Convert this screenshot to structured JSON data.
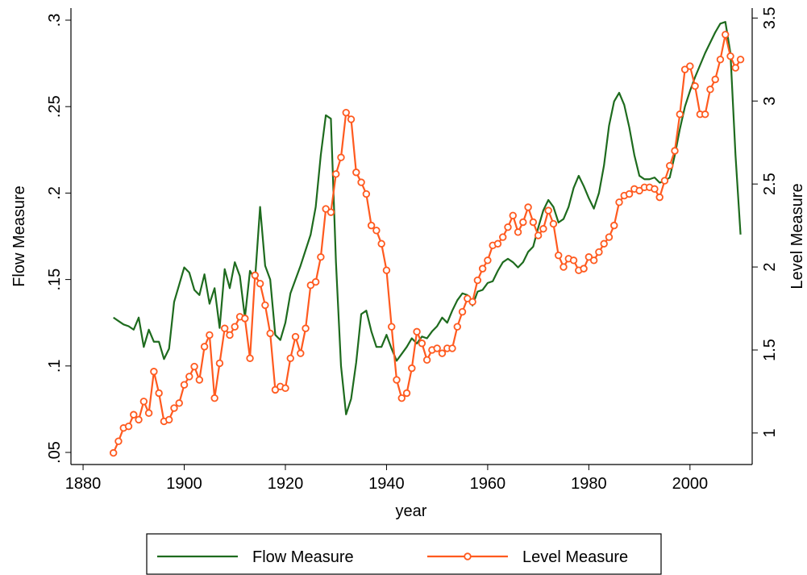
{
  "chart_data": {
    "type": "line",
    "xlabel": "year",
    "ylabel": "Flow Measure",
    "y2label": "Level Measure",
    "x": [
      1886,
      1887,
      1888,
      1889,
      1890,
      1891,
      1892,
      1893,
      1894,
      1895,
      1896,
      1897,
      1898,
      1899,
      1900,
      1901,
      1902,
      1903,
      1904,
      1905,
      1906,
      1907,
      1908,
      1909,
      1910,
      1911,
      1912,
      1913,
      1914,
      1915,
      1916,
      1917,
      1918,
      1919,
      1920,
      1921,
      1922,
      1923,
      1924,
      1925,
      1926,
      1927,
      1928,
      1929,
      1930,
      1931,
      1932,
      1933,
      1934,
      1935,
      1936,
      1937,
      1938,
      1939,
      1940,
      1941,
      1942,
      1943,
      1944,
      1945,
      1946,
      1947,
      1948,
      1949,
      1950,
      1951,
      1952,
      1953,
      1954,
      1955,
      1956,
      1957,
      1958,
      1959,
      1960,
      1961,
      1962,
      1963,
      1964,
      1965,
      1966,
      1967,
      1968,
      1969,
      1970,
      1971,
      1972,
      1973,
      1974,
      1975,
      1976,
      1977,
      1978,
      1979,
      1980,
      1981,
      1982,
      1983,
      1984,
      1985,
      1986,
      1987,
      1988,
      1989,
      1990,
      1991,
      1992,
      1993,
      1994,
      1995,
      1996,
      1997,
      1998,
      1999,
      2000,
      2001,
      2002,
      2003,
      2004,
      2005,
      2006,
      2007,
      2008,
      2009,
      2010
    ],
    "series": [
      {
        "name": "Flow Measure",
        "color": "#1e6b1e",
        "values": [
          0.128,
          0.126,
          0.124,
          0.123,
          0.121,
          0.128,
          0.111,
          0.121,
          0.114,
          0.114,
          0.104,
          0.11,
          0.137,
          0.147,
          0.157,
          0.154,
          0.144,
          0.141,
          0.153,
          0.136,
          0.145,
          0.122,
          0.156,
          0.145,
          0.16,
          0.152,
          0.128,
          0.155,
          0.15,
          0.192,
          0.158,
          0.15,
          0.118,
          0.115,
          0.125,
          0.142,
          0.15,
          0.158,
          0.167,
          0.176,
          0.192,
          0.222,
          0.245,
          0.243,
          0.16,
          0.1,
          0.072,
          0.081,
          0.102,
          0.13,
          0.132,
          0.12,
          0.111,
          0.111,
          0.118,
          0.11,
          0.103,
          0.107,
          0.111,
          0.116,
          0.113,
          0.117,
          0.116,
          0.12,
          0.123,
          0.128,
          0.125,
          0.132,
          0.138,
          0.142,
          0.141,
          0.135,
          0.143,
          0.144,
          0.148,
          0.149,
          0.155,
          0.16,
          0.162,
          0.16,
          0.157,
          0.16,
          0.166,
          0.169,
          0.18,
          0.19,
          0.196,
          0.192,
          0.183,
          0.185,
          0.192,
          0.203,
          0.21,
          0.204,
          0.197,
          0.191,
          0.2,
          0.216,
          0.239,
          0.253,
          0.258,
          0.251,
          0.238,
          0.222,
          0.21,
          0.208,
          0.208,
          0.209,
          0.206,
          0.207,
          0.209,
          0.222,
          0.237,
          0.25,
          0.259,
          0.267,
          0.274,
          0.281,
          0.287,
          0.293,
          0.298,
          0.299,
          0.281,
          0.222,
          0.176
        ]
      },
      {
        "name": "Level Measure",
        "color": "#ff5a1f",
        "axis": "y2",
        "marker": "circle",
        "values": [
          0.88,
          0.95,
          1.03,
          1.04,
          1.11,
          1.08,
          1.19,
          1.12,
          1.37,
          1.24,
          1.07,
          1.08,
          1.15,
          1.18,
          1.29,
          1.34,
          1.4,
          1.32,
          1.52,
          1.59,
          1.21,
          1.42,
          1.63,
          1.59,
          1.64,
          1.7,
          1.69,
          1.45,
          1.95,
          1.9,
          1.77,
          1.6,
          1.26,
          1.28,
          1.27,
          1.45,
          1.58,
          1.48,
          1.63,
          1.89,
          1.91,
          2.06,
          2.35,
          2.33,
          2.56,
          2.66,
          2.93,
          2.89,
          2.57,
          2.51,
          2.44,
          2.25,
          2.22,
          2.14,
          1.98,
          1.64,
          1.32,
          1.21,
          1.24,
          1.39,
          1.61,
          1.54,
          1.44,
          1.5,
          1.51,
          1.48,
          1.51,
          1.51,
          1.64,
          1.73,
          1.81,
          1.79,
          1.92,
          1.99,
          2.04,
          2.13,
          2.14,
          2.18,
          2.24,
          2.31,
          2.21,
          2.27,
          2.36,
          2.27,
          2.19,
          2.23,
          2.34,
          2.26,
          2.07,
          2.0,
          2.05,
          2.04,
          1.98,
          1.99,
          2.06,
          2.04,
          2.09,
          2.14,
          2.18,
          2.25,
          2.39,
          2.43,
          2.44,
          2.47,
          2.46,
          2.48,
          2.48,
          2.47,
          2.42,
          2.52,
          2.61,
          2.7,
          2.92,
          3.19,
          3.21,
          3.09,
          2.92,
          2.92,
          3.07,
          3.13,
          3.25,
          3.4,
          3.27,
          3.2,
          3.25
        ]
      }
    ],
    "xlim": [
      1877.6,
      2012.3
    ],
    "xticks": [
      1880,
      1900,
      1920,
      1940,
      1960,
      1980,
      2000
    ],
    "ylim": [
      0.043,
      0.307
    ],
    "yticks": [
      {
        "value": 0.05,
        "label": ".05"
      },
      {
        "value": 0.1,
        "label": ".1"
      },
      {
        "value": 0.15,
        "label": ".15"
      },
      {
        "value": 0.2,
        "label": ".2"
      },
      {
        "value": 0.25,
        "label": ".25"
      },
      {
        "value": 0.3,
        "label": ".3"
      }
    ],
    "y2lim": [
      0.81,
      3.56
    ],
    "y2ticks": [
      1,
      1.5,
      2,
      2.5,
      3,
      3.5
    ],
    "grid": false,
    "legend": "bottom"
  }
}
